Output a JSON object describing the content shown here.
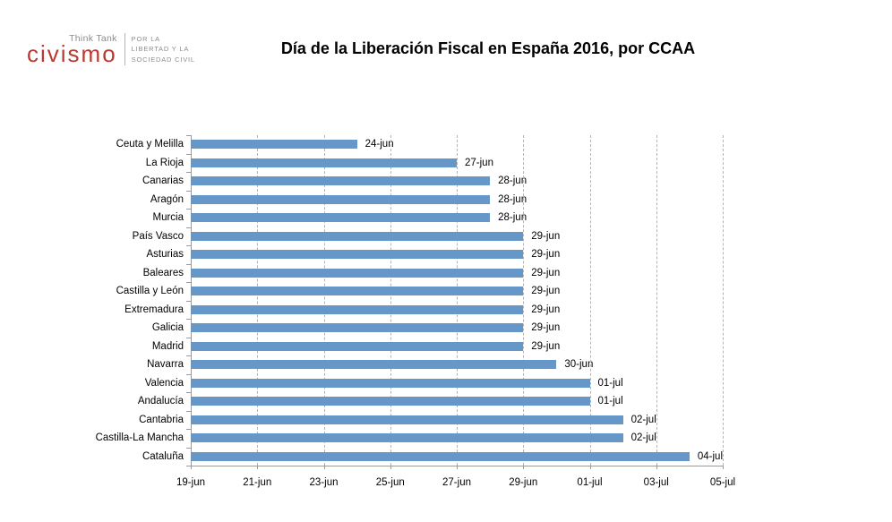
{
  "logo": {
    "think_tank": "Think Tank",
    "brand": "civismo",
    "tagline_lines": [
      "POR LA",
      "LIBERTAD Y LA",
      "SOCIEDAD CIVIL"
    ],
    "brand_color": "#b93a31",
    "gray_color": "#8c8c8c"
  },
  "title": "Día de la Liberación Fiscal en España 2016, por CCAA",
  "chart_data": {
    "type": "bar",
    "orientation": "horizontal",
    "title": "Día de la Liberación Fiscal en España 2016, por CCAA",
    "categories": [
      "Ceuta y Melilla",
      "La Rioja",
      "Canarias",
      "Aragón",
      "Murcia",
      "País Vasco",
      "Asturias",
      "Baleares",
      "Castilla y León",
      "Extremadura",
      "Galicia",
      "Madrid",
      "Navarra",
      "Valencia",
      "Andalucía",
      "Cantabria",
      "Castilla-La Mancha",
      "Cataluña"
    ],
    "values": [
      "24-jun",
      "27-jun",
      "28-jun",
      "28-jun",
      "28-jun",
      "29-jun",
      "29-jun",
      "29-jun",
      "29-jun",
      "29-jun",
      "29-jun",
      "29-jun",
      "30-jun",
      "01-jul",
      "01-jul",
      "02-jul",
      "02-jul",
      "04-jul"
    ],
    "days_from_axis_start": [
      5,
      8,
      9,
      9,
      9,
      10,
      10,
      10,
      10,
      10,
      10,
      10,
      11,
      12,
      12,
      13,
      13,
      15
    ],
    "x_ticks": [
      "19-jun",
      "21-jun",
      "23-jun",
      "25-jun",
      "27-jun",
      "29-jun",
      "01-jul",
      "03-jul",
      "05-jul"
    ],
    "x_tick_days": [
      0,
      2,
      4,
      6,
      8,
      10,
      12,
      14,
      16
    ],
    "x_range_days": [
      0,
      16
    ],
    "bar_color": "#6597c9",
    "axis_color": "#9a9a9a",
    "gridline_color": "#b3b3b3",
    "grid": true,
    "legend": false
  }
}
